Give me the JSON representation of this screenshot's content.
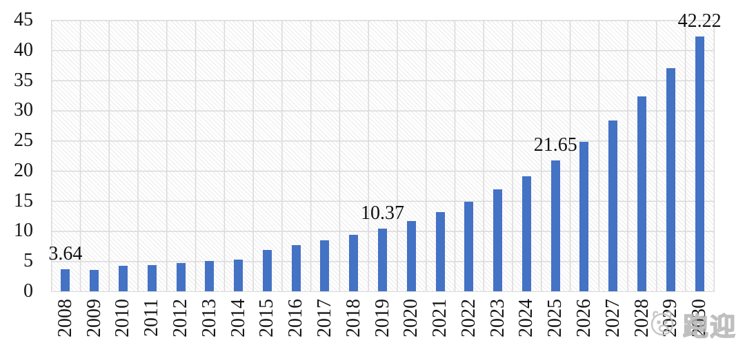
{
  "chart_data": {
    "type": "bar",
    "title": "",
    "xlabel": "",
    "ylabel": "",
    "categories": [
      "2008",
      "2009",
      "2010",
      "2011",
      "2012",
      "2013",
      "2014",
      "2015",
      "2016",
      "2017",
      "2018",
      "2019",
      "2020",
      "2021",
      "2022",
      "2023",
      "2024",
      "2025",
      "2026",
      "2027",
      "2028",
      "2029",
      "2030"
    ],
    "values": [
      3.64,
      3.5,
      4.2,
      4.3,
      4.7,
      5.0,
      5.3,
      6.9,
      7.6,
      8.5,
      9.4,
      10.37,
      11.7,
      13.1,
      14.9,
      16.9,
      19.1,
      21.65,
      24.8,
      28.3,
      32.3,
      37.0,
      42.22
    ],
    "data_labels": [
      {
        "category": "2008",
        "text": "3.64"
      },
      {
        "category": "2019",
        "text": "10.37"
      },
      {
        "category": "2025",
        "text": "21.65"
      },
      {
        "category": "2030",
        "text": "42.22"
      }
    ],
    "yticks": [
      0,
      5,
      10,
      15,
      20,
      25,
      30,
      35,
      40,
      45
    ],
    "ylim": [
      0,
      45
    ],
    "legend_position": "none",
    "grid": "both",
    "hatch_background": true,
    "bar_color": "#4472C4",
    "grid_color": "#d9d9d9",
    "tick_label_rotation_x": 90
  },
  "watermark": {
    "text": "跑迎",
    "icon": "mascot-face-icon",
    "color": "#b5b5b5"
  }
}
